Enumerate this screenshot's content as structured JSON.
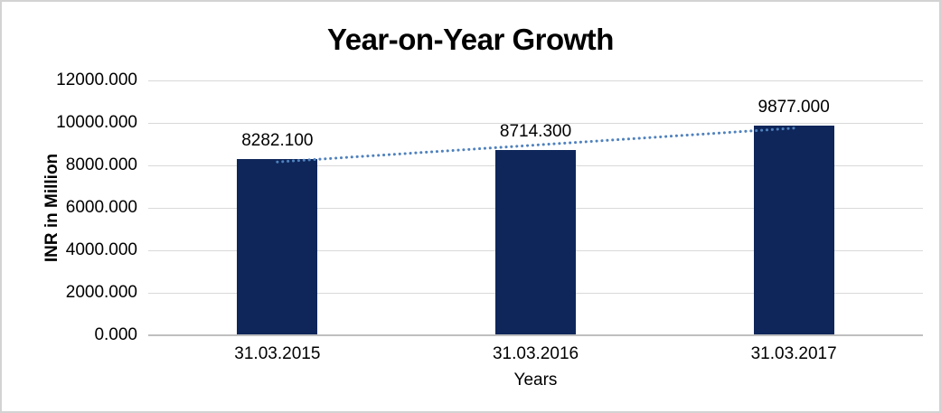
{
  "chart_data": {
    "type": "bar",
    "title": "Year-on-Year Growth",
    "xlabel": "Years",
    "ylabel": "INR in Million",
    "categories": [
      "31.03.2015",
      "31.03.2016",
      "31.03.2017"
    ],
    "values": [
      8282.1,
      8714.3,
      9877.0
    ],
    "value_labels": [
      "8282.100",
      "8714.300",
      "9877.000"
    ],
    "ylim": [
      0,
      12000
    ],
    "ytick_step": 2000,
    "ytick_labels_top_to_bottom": [
      "12000.000",
      "10000.000",
      "8000.000",
      "6000.000",
      "4000.000",
      "2000.000",
      "0.000"
    ],
    "grid": true,
    "legend_position": "none",
    "series": [
      {
        "name": "INR in Million",
        "type": "bar",
        "values": [
          8282.1,
          8714.3,
          9877.0
        ]
      },
      {
        "name": "linear-trendline",
        "type": "line",
        "style": "dotted",
        "fit": "least-squares"
      }
    ],
    "colors": {
      "bar": "#0E265A",
      "trendline": "#4F81BD",
      "gridline": "#D9D9D9",
      "axis_line": "#BFBFBF",
      "text": "#000000",
      "frame_border": "#D3D3D3",
      "background": "#FFFFFF"
    }
  }
}
